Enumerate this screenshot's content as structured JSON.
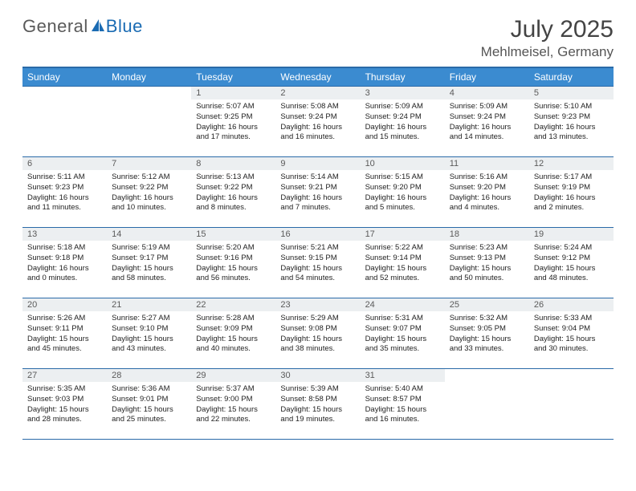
{
  "logo": {
    "part1": "General",
    "part2": "Blue"
  },
  "title": "July 2025",
  "location": "Mehlmeisel, Germany",
  "colors": {
    "header_bg": "#3b8bd0",
    "header_border": "#2a6aa8",
    "daynum_bg": "#eceff1",
    "text": "#333333",
    "logo_blue": "#1a6bb3"
  },
  "day_headers": [
    "Sunday",
    "Monday",
    "Tuesday",
    "Wednesday",
    "Thursday",
    "Friday",
    "Saturday"
  ],
  "weeks": [
    [
      null,
      null,
      {
        "n": "1",
        "sr": "Sunrise: 5:07 AM",
        "ss": "Sunset: 9:25 PM",
        "dl": "Daylight: 16 hours and 17 minutes."
      },
      {
        "n": "2",
        "sr": "Sunrise: 5:08 AM",
        "ss": "Sunset: 9:24 PM",
        "dl": "Daylight: 16 hours and 16 minutes."
      },
      {
        "n": "3",
        "sr": "Sunrise: 5:09 AM",
        "ss": "Sunset: 9:24 PM",
        "dl": "Daylight: 16 hours and 15 minutes."
      },
      {
        "n": "4",
        "sr": "Sunrise: 5:09 AM",
        "ss": "Sunset: 9:24 PM",
        "dl": "Daylight: 16 hours and 14 minutes."
      },
      {
        "n": "5",
        "sr": "Sunrise: 5:10 AM",
        "ss": "Sunset: 9:23 PM",
        "dl": "Daylight: 16 hours and 13 minutes."
      }
    ],
    [
      {
        "n": "6",
        "sr": "Sunrise: 5:11 AM",
        "ss": "Sunset: 9:23 PM",
        "dl": "Daylight: 16 hours and 11 minutes."
      },
      {
        "n": "7",
        "sr": "Sunrise: 5:12 AM",
        "ss": "Sunset: 9:22 PM",
        "dl": "Daylight: 16 hours and 10 minutes."
      },
      {
        "n": "8",
        "sr": "Sunrise: 5:13 AM",
        "ss": "Sunset: 9:22 PM",
        "dl": "Daylight: 16 hours and 8 minutes."
      },
      {
        "n": "9",
        "sr": "Sunrise: 5:14 AM",
        "ss": "Sunset: 9:21 PM",
        "dl": "Daylight: 16 hours and 7 minutes."
      },
      {
        "n": "10",
        "sr": "Sunrise: 5:15 AM",
        "ss": "Sunset: 9:20 PM",
        "dl": "Daylight: 16 hours and 5 minutes."
      },
      {
        "n": "11",
        "sr": "Sunrise: 5:16 AM",
        "ss": "Sunset: 9:20 PM",
        "dl": "Daylight: 16 hours and 4 minutes."
      },
      {
        "n": "12",
        "sr": "Sunrise: 5:17 AM",
        "ss": "Sunset: 9:19 PM",
        "dl": "Daylight: 16 hours and 2 minutes."
      }
    ],
    [
      {
        "n": "13",
        "sr": "Sunrise: 5:18 AM",
        "ss": "Sunset: 9:18 PM",
        "dl": "Daylight: 16 hours and 0 minutes."
      },
      {
        "n": "14",
        "sr": "Sunrise: 5:19 AM",
        "ss": "Sunset: 9:17 PM",
        "dl": "Daylight: 15 hours and 58 minutes."
      },
      {
        "n": "15",
        "sr": "Sunrise: 5:20 AM",
        "ss": "Sunset: 9:16 PM",
        "dl": "Daylight: 15 hours and 56 minutes."
      },
      {
        "n": "16",
        "sr": "Sunrise: 5:21 AM",
        "ss": "Sunset: 9:15 PM",
        "dl": "Daylight: 15 hours and 54 minutes."
      },
      {
        "n": "17",
        "sr": "Sunrise: 5:22 AM",
        "ss": "Sunset: 9:14 PM",
        "dl": "Daylight: 15 hours and 52 minutes."
      },
      {
        "n": "18",
        "sr": "Sunrise: 5:23 AM",
        "ss": "Sunset: 9:13 PM",
        "dl": "Daylight: 15 hours and 50 minutes."
      },
      {
        "n": "19",
        "sr": "Sunrise: 5:24 AM",
        "ss": "Sunset: 9:12 PM",
        "dl": "Daylight: 15 hours and 48 minutes."
      }
    ],
    [
      {
        "n": "20",
        "sr": "Sunrise: 5:26 AM",
        "ss": "Sunset: 9:11 PM",
        "dl": "Daylight: 15 hours and 45 minutes."
      },
      {
        "n": "21",
        "sr": "Sunrise: 5:27 AM",
        "ss": "Sunset: 9:10 PM",
        "dl": "Daylight: 15 hours and 43 minutes."
      },
      {
        "n": "22",
        "sr": "Sunrise: 5:28 AM",
        "ss": "Sunset: 9:09 PM",
        "dl": "Daylight: 15 hours and 40 minutes."
      },
      {
        "n": "23",
        "sr": "Sunrise: 5:29 AM",
        "ss": "Sunset: 9:08 PM",
        "dl": "Daylight: 15 hours and 38 minutes."
      },
      {
        "n": "24",
        "sr": "Sunrise: 5:31 AM",
        "ss": "Sunset: 9:07 PM",
        "dl": "Daylight: 15 hours and 35 minutes."
      },
      {
        "n": "25",
        "sr": "Sunrise: 5:32 AM",
        "ss": "Sunset: 9:05 PM",
        "dl": "Daylight: 15 hours and 33 minutes."
      },
      {
        "n": "26",
        "sr": "Sunrise: 5:33 AM",
        "ss": "Sunset: 9:04 PM",
        "dl": "Daylight: 15 hours and 30 minutes."
      }
    ],
    [
      {
        "n": "27",
        "sr": "Sunrise: 5:35 AM",
        "ss": "Sunset: 9:03 PM",
        "dl": "Daylight: 15 hours and 28 minutes."
      },
      {
        "n": "28",
        "sr": "Sunrise: 5:36 AM",
        "ss": "Sunset: 9:01 PM",
        "dl": "Daylight: 15 hours and 25 minutes."
      },
      {
        "n": "29",
        "sr": "Sunrise: 5:37 AM",
        "ss": "Sunset: 9:00 PM",
        "dl": "Daylight: 15 hours and 22 minutes."
      },
      {
        "n": "30",
        "sr": "Sunrise: 5:39 AM",
        "ss": "Sunset: 8:58 PM",
        "dl": "Daylight: 15 hours and 19 minutes."
      },
      {
        "n": "31",
        "sr": "Sunrise: 5:40 AM",
        "ss": "Sunset: 8:57 PM",
        "dl": "Daylight: 15 hours and 16 minutes."
      },
      null,
      null
    ]
  ]
}
